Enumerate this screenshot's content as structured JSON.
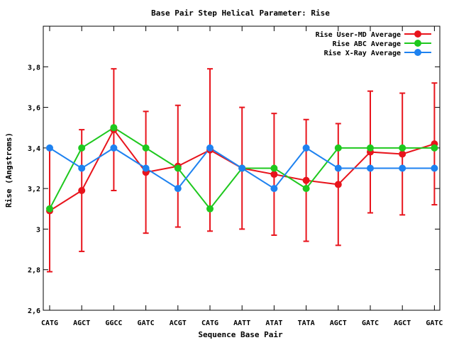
{
  "chart_data": {
    "type": "line",
    "title": "Base Pair Step Helical Parameter: Rise",
    "xlabel": "Sequence Base Pair",
    "ylabel": "Rise (Angstroms)",
    "categories": [
      "CATG",
      "AGCT",
      "GGCC",
      "GATC",
      "ACGT",
      "CATG",
      "AATT",
      "ATAT",
      "TATA",
      "AGCT",
      "GATC",
      "AGCT",
      "GATC"
    ],
    "ylim": [
      2.6,
      4.0
    ],
    "yticks": [
      2.6,
      2.8,
      3.0,
      3.2,
      3.4,
      3.6,
      3.8
    ],
    "ytick_labels": [
      "2,6",
      "2,8",
      "3",
      "3,2",
      "3,4",
      "3,6",
      "3,8"
    ],
    "legend_position": "top-right",
    "grid": false,
    "series": [
      {
        "name": "Rise User-MD Average",
        "color": "#e8141c",
        "values": [
          3.09,
          3.19,
          3.49,
          3.28,
          3.31,
          3.39,
          3.3,
          3.27,
          3.24,
          3.22,
          3.38,
          3.37,
          3.42
        ],
        "err_low": [
          2.79,
          2.89,
          3.19,
          2.98,
          3.01,
          2.99,
          3.0,
          2.97,
          2.94,
          2.92,
          3.08,
          3.07,
          3.12
        ],
        "err_high": [
          3.4,
          3.49,
          3.79,
          3.58,
          3.61,
          3.79,
          3.6,
          3.57,
          3.54,
          3.52,
          3.68,
          3.67,
          3.72
        ]
      },
      {
        "name": "Rise ABC Average",
        "color": "#1ec81e",
        "values": [
          3.1,
          3.4,
          3.5,
          3.4,
          3.3,
          3.1,
          3.3,
          3.3,
          3.2,
          3.4,
          3.4,
          3.4,
          3.4
        ]
      },
      {
        "name": "Rise X-Ray Average",
        "color": "#1e82f0",
        "values": [
          3.4,
          3.3,
          3.4,
          3.3,
          3.2,
          3.4,
          3.3,
          3.2,
          3.4,
          3.3,
          3.3,
          3.3,
          3.3
        ]
      }
    ]
  }
}
